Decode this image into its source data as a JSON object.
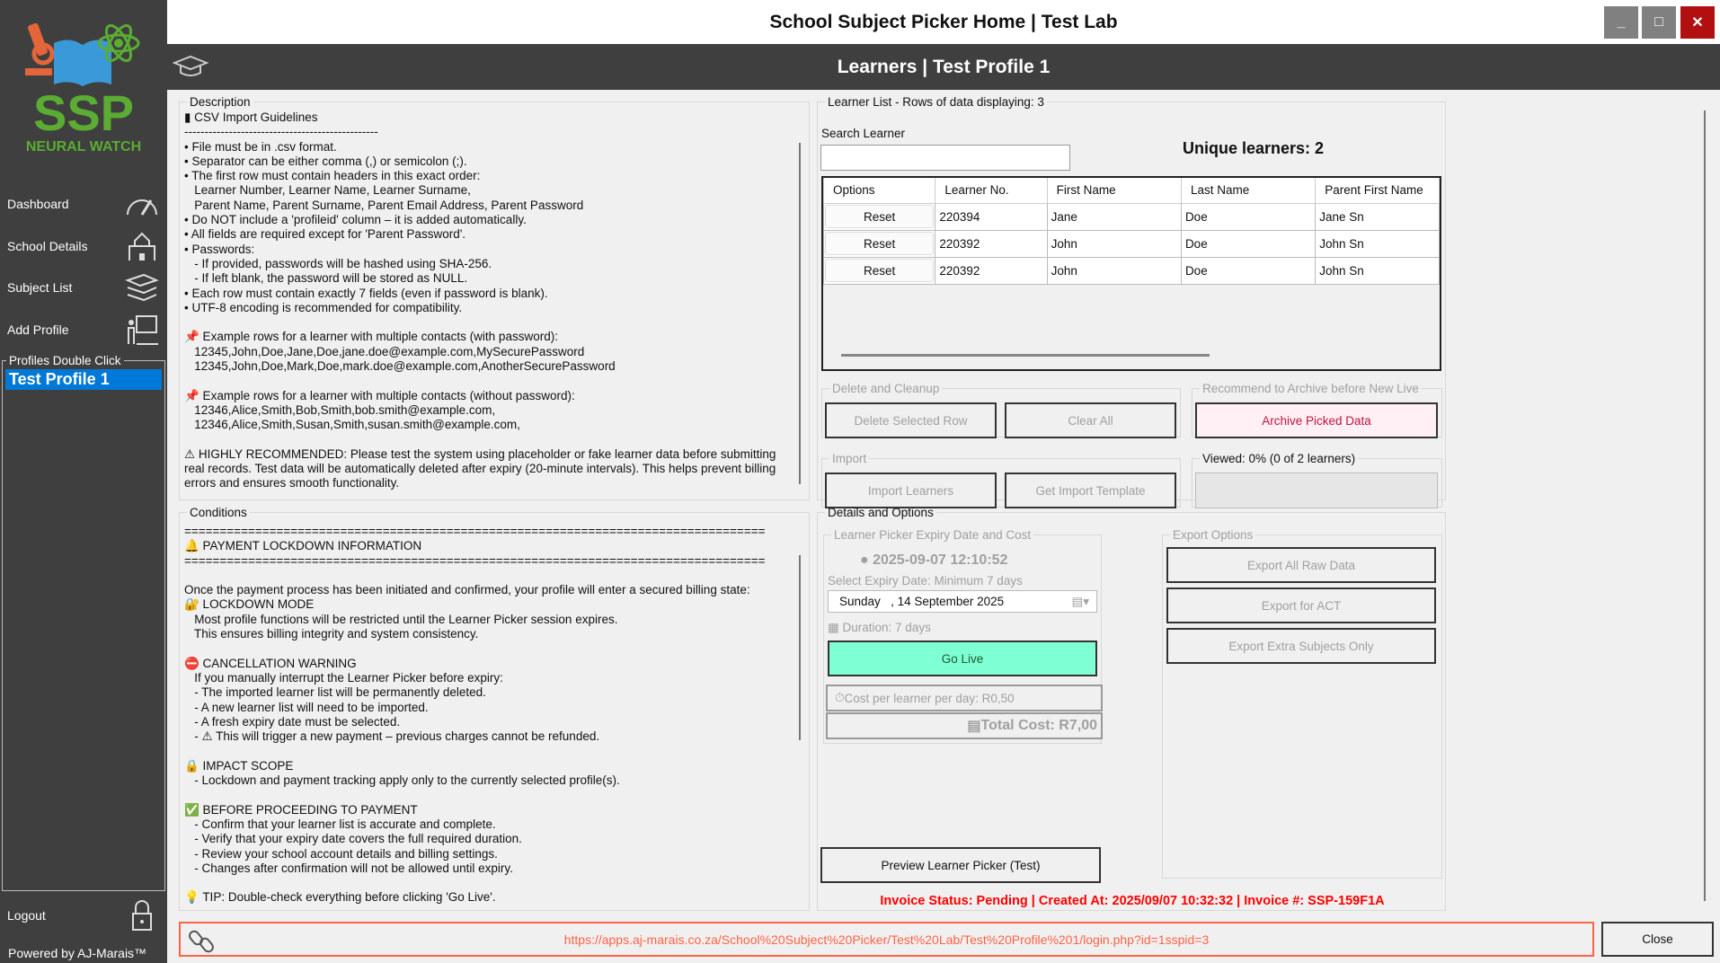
{
  "window": {
    "title": "School Subject Picker Home | Test Lab",
    "minimize": "_",
    "maximize": "□",
    "close": "✕"
  },
  "header": {
    "title": "Learners | Test Profile 1"
  },
  "sidebar": {
    "logo": {
      "text": "SSP",
      "subtitle": "NEURAL WATCH"
    },
    "items": [
      {
        "label": "Dashboard",
        "icon": "speedometer-icon"
      },
      {
        "label": "School Details",
        "icon": "school-icon"
      },
      {
        "label": "Subject List",
        "icon": "books-icon"
      },
      {
        "label": "Add Profile",
        "icon": "teacher-icon"
      }
    ],
    "profiles_label": "Profiles Double Click",
    "profiles": [
      "Test Profile 1"
    ],
    "logout": "Logout",
    "powered_by": "Powered by AJ-Marais™"
  },
  "description": {
    "legend": "Description",
    "lines": [
      "▮ CSV Import Guidelines",
      "------------------------------------------------",
      "• File must be in .csv format.",
      "• Separator can be either comma (,) or semicolon (;).",
      "• The first row must contain headers in this exact order:",
      "   Learner Number, Learner Name, Learner Surname,",
      "   Parent Name, Parent Surname, Parent Email Address, Parent Password",
      "• Do NOT include a 'profileid' column – it is added automatically.",
      "• All fields are required except for 'Parent Password'.",
      "• Passwords:",
      "   - If provided, passwords will be hashed using SHA-256.",
      "   - If left blank, the password will be stored as NULL.",
      "• Each row must contain exactly 7 fields (even if password is blank).",
      "• UTF-8 encoding is recommended for compatibility.",
      "",
      "📌 Example rows for a learner with multiple contacts (with password):",
      "   12345,John,Doe,Jane,Doe,jane.doe@example.com,MySecurePassword",
      "   12345,John,Doe,Mark,Doe,mark.doe@example.com,AnotherSecurePassword",
      "",
      "📌 Example rows for a learner with multiple contacts (without password):",
      "   12346,Alice,Smith,Bob,Smith,bob.smith@example.com,",
      "   12346,Alice,Smith,Susan,Smith,susan.smith@example.com,",
      "",
      "⚠ HIGHLY RECOMMENDED: Please test the system using placeholder or fake learner data before submitting",
      "real records. Test data will be automatically deleted after expiry (20-minute intervals). This helps prevent billing",
      "errors and ensures smooth functionality."
    ]
  },
  "conditions": {
    "legend": "Conditions",
    "lines": [
      "==================================================================================",
      "🔔 PAYMENT LOCKDOWN INFORMATION",
      "==================================================================================",
      "",
      "Once the payment process has been initiated and confirmed, your profile will enter a secured billing state:",
      "🔐 LOCKDOWN MODE",
      "   Most profile functions will be restricted until the Learner Picker session expires.",
      "   This ensures billing integrity and system consistency.",
      "",
      "⛔ CANCELLATION WARNING",
      "   If you manually interrupt the Learner Picker before expiry:",
      "   - The imported learner list will be permanently deleted.",
      "   - A new learner list will need to be imported.",
      "   - A fresh expiry date must be selected.",
      "   - ⚠ This will trigger a new payment – previous charges cannot be refunded.",
      "",
      "🔒 IMPACT SCOPE",
      "   - Lockdown and payment tracking apply only to the currently selected profile(s).",
      "",
      "✅ BEFORE PROCEEDING TO PAYMENT",
      "   - Confirm that your learner list is accurate and complete.",
      "   - Verify that your expiry date covers the full required duration.",
      "   - Review your school account details and billing settings.",
      "   - Changes after confirmation will not be allowed until expiry.",
      "",
      "💡 TIP: Double-check everything before clicking 'Go Live'."
    ]
  },
  "learner_list": {
    "legend": "Learner List - Rows of data displaying: 3",
    "search_label": "Search Learner",
    "search_value": "",
    "unique": "Unique learners: 2",
    "columns": [
      "Options",
      "Learner No.",
      "First Name",
      "Last Name",
      "Parent First Name"
    ],
    "rows": [
      [
        "Reset",
        "220394",
        "Jane",
        "Doe",
        "Jane Sn"
      ],
      [
        "Reset",
        "220392",
        "John",
        "Doe",
        "John Sn"
      ],
      [
        "Reset",
        "220392",
        "John",
        "Doe",
        "John Sn"
      ]
    ]
  },
  "cleanup": {
    "legend": "Delete and Cleanup",
    "delete": "Delete Selected Row",
    "clear": "Clear All"
  },
  "archive": {
    "legend": "Recommend to Archive before New Live",
    "button": "Archive Picked Data"
  },
  "import": {
    "legend": "Import",
    "import": "Import Learners",
    "template": "Get Import Template"
  },
  "viewed": {
    "legend": "Viewed: 0% (0 of 2 learners)",
    "progress": 0
  },
  "details": {
    "legend": "Details and Options",
    "expiry_legend": "Learner Picker Expiry Date and Cost",
    "datetime": "2025-09-07 12:10:52",
    "select_label": "Select Expiry Date: Minimum 7 days",
    "date_day": "Sunday",
    "date_value": ", 14 September 2025",
    "duration": "Duration: 7 days",
    "go_live": "Go Live",
    "cost_per": "Cost per learner per day: R0,50",
    "total": "Total Cost: R7,00",
    "preview": "Preview Learner Picker (Test)",
    "invoice": "Invoice Status: Pending | Created At: 2025/09/07 10:32:32 | Invoice #: SSP-159F1A"
  },
  "export": {
    "legend": "Export Options",
    "raw": "Export All Raw Data",
    "act": "Export for ACT",
    "extra": "Export Extra Subjects Only"
  },
  "url_bar": {
    "url": "https://apps.aj-marais.co.za/School%20Subject%20Picker/Test%20Lab/Test%20Profile%201/login.php?id=1sspid=3",
    "close": "Close"
  },
  "colors": {
    "sidebar": "#3f3f3f",
    "go_live": "#7fffd4",
    "archive_bg": "#fff0f5",
    "archive_text": "#c0143c",
    "invoice": "#ff0000",
    "url": "#ff6347",
    "selected": "#0078d7",
    "logo_green": "#5aac32"
  }
}
